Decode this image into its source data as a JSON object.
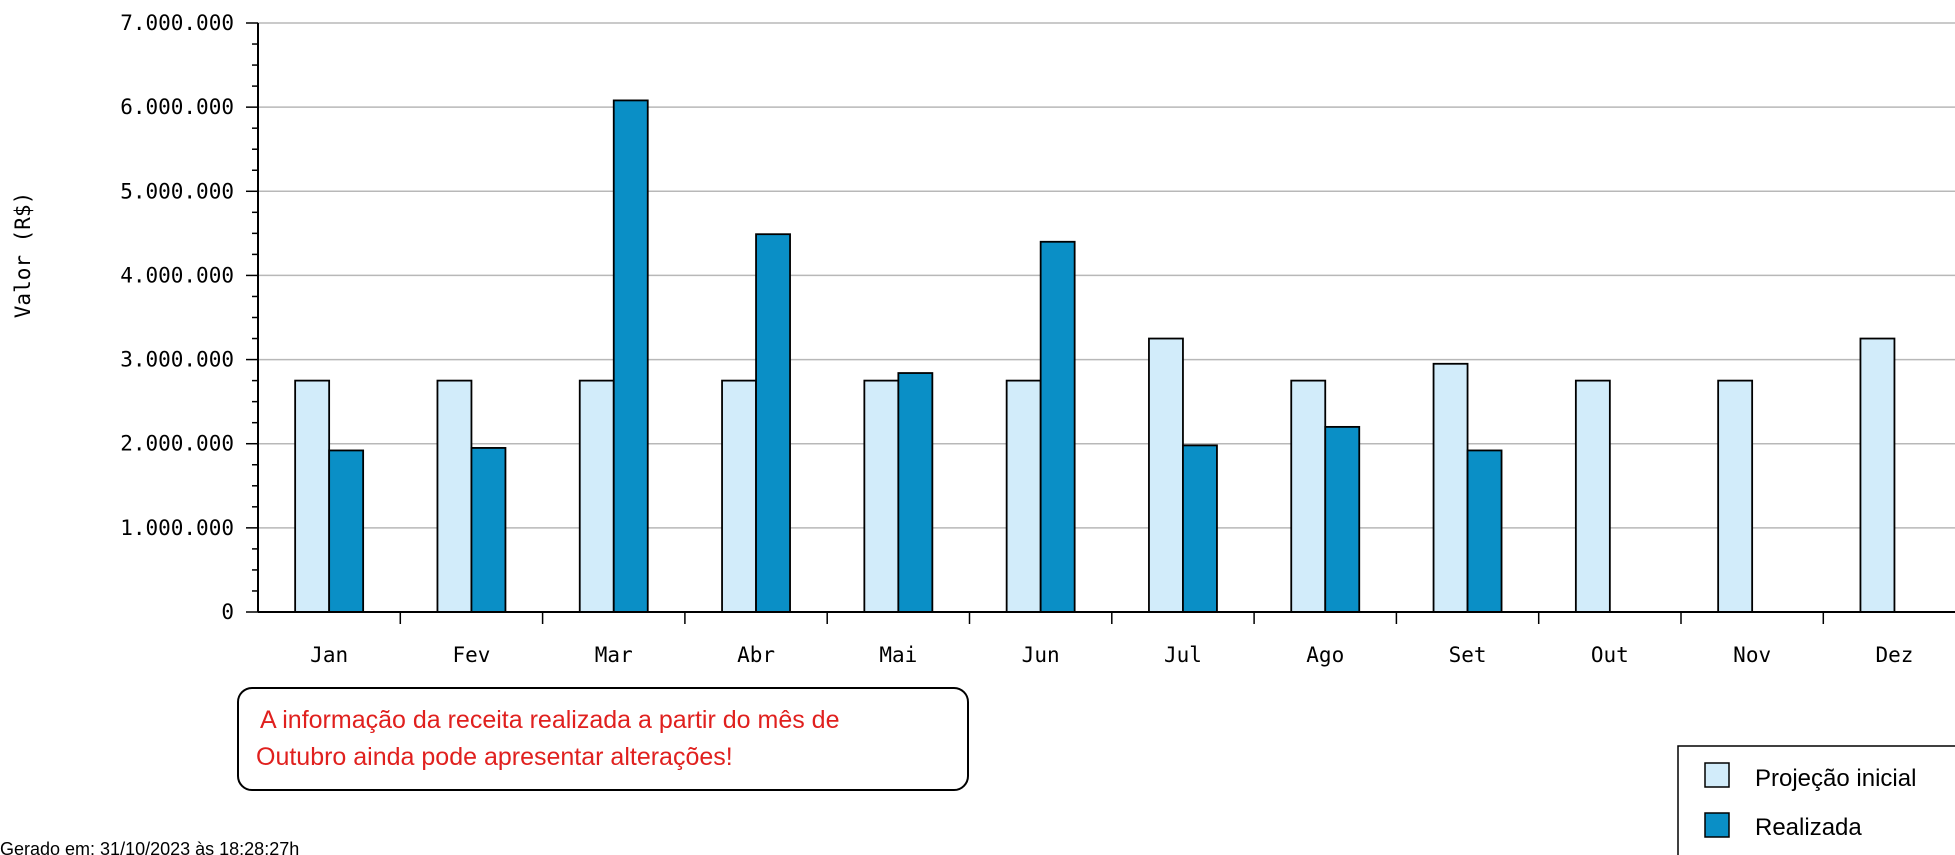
{
  "chart_data": {
    "type": "bar",
    "title": "",
    "xlabel": "",
    "ylabel": "Valor (R$)",
    "ylim": [
      0,
      7000000
    ],
    "yticks": [
      "0",
      "1.000.000",
      "2.000.000",
      "3.000.000",
      "4.000.000",
      "5.000.000",
      "6.000.000",
      "7.000.000"
    ],
    "ytick_values": [
      0,
      1000000,
      2000000,
      3000000,
      4000000,
      5000000,
      6000000,
      7000000
    ],
    "grid": true,
    "legend_position": "bottom-right",
    "categories": [
      "Jan",
      "Fev",
      "Mar",
      "Abr",
      "Mai",
      "Jun",
      "Jul",
      "Ago",
      "Set",
      "Out",
      "Nov",
      "Dez"
    ],
    "series": [
      {
        "name": "Projeção inicial",
        "color": "#d2ecfa",
        "values": [
          2750000,
          2750000,
          2750000,
          2750000,
          2750000,
          2750000,
          3250000,
          2750000,
          2950000,
          2750000,
          2750000,
          3250000
        ]
      },
      {
        "name": "Realizada",
        "color": "#0a8fc6",
        "values": [
          1920000,
          1950000,
          6080000,
          4490000,
          2840000,
          4400000,
          1980000,
          2200000,
          1920000,
          null,
          null,
          null
        ]
      }
    ]
  },
  "note": {
    "line1": "A informação da receita realizada a partir do mês de",
    "line2": "Outubro ainda pode apresentar alterações!"
  },
  "footer": {
    "generated": "Gerado em: 31/10/2023 às 18:28:27h"
  }
}
